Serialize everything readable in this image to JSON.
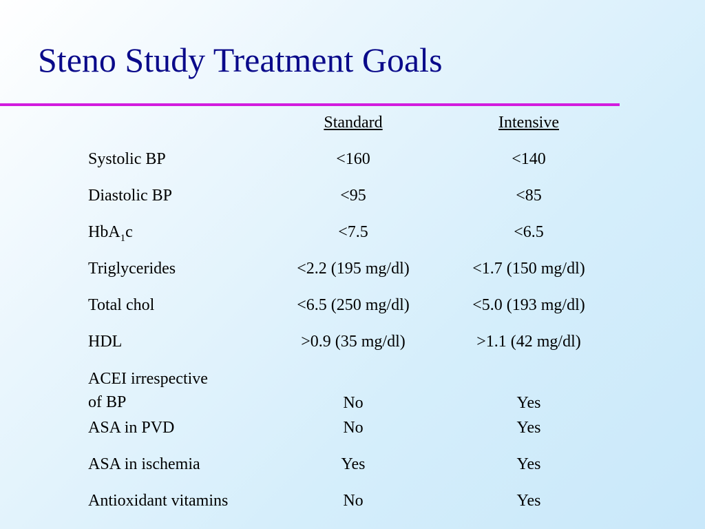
{
  "title": "Steno Study Treatment Goals",
  "accent_color": "#d21cde",
  "title_color": "#0a0a8a",
  "headers": {
    "standard": "Standard",
    "intensive": "Intensive"
  },
  "rows": [
    {
      "label": "Systolic BP",
      "standard": "<160",
      "intensive": "<140"
    },
    {
      "label": "Diastolic BP",
      "standard": "<95",
      "intensive": "<85"
    },
    {
      "label_main": "HbA",
      "label_sub": "1",
      "label_tail": "c",
      "standard": "<7.5",
      "intensive": "<6.5"
    },
    {
      "label": "Triglycerides",
      "standard": "<2.2 (195 mg/dl)",
      "intensive": "<1.7 (150 mg/dl)"
    },
    {
      "label": "Total chol",
      "standard": "<6.5 (250 mg/dl)",
      "intensive": "<5.0 (193 mg/dl)"
    },
    {
      "label": "HDL",
      "standard": ">0.9 (35 mg/dl)",
      "intensive": ">1.1 (42 mg/dl)"
    },
    {
      "label_line1": "ACEI irrespective",
      "label_line2": "of BP",
      "standard": "No",
      "intensive": "Yes"
    },
    {
      "label": "ASA in PVD",
      "standard": "No",
      "intensive": "Yes"
    },
    {
      "label": "ASA in ischemia",
      "standard": "Yes",
      "intensive": "Yes"
    },
    {
      "label": "Antioxidant vitamins",
      "standard": "No",
      "intensive": "Yes"
    }
  ]
}
